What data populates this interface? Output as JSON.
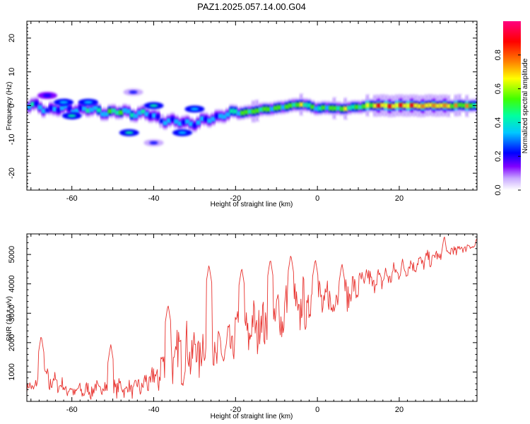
{
  "figure_title": "PAZ1.2025.057.14.00.G04",
  "chart_data": [
    {
      "type": "heatmap",
      "xlabel": "Height of straight line (km)",
      "ylabel": "Frequency (Hz)",
      "xlim": [
        -71,
        39
      ],
      "ylim": [
        -25,
        25
      ],
      "xticks": [
        -60,
        -40,
        -20,
        0,
        20
      ],
      "yticks": [
        -20,
        -10,
        0,
        10,
        20
      ],
      "colorbar": {
        "label": "Normalized spectral amplitude",
        "ticks": [
          0.0,
          0.2,
          0.4,
          0.6,
          0.8
        ],
        "ticklabels": [
          "0.0",
          "0.2",
          "0.4",
          "0.6",
          "0.8"
        ],
        "range": [
          0,
          1
        ],
        "colormap": [
          "#ffffff",
          "#c8a8ff",
          "#8000ff",
          "#0000ff",
          "#00c8ff",
          "#00ffa0",
          "#40ff00",
          "#ffff00",
          "#ff8000",
          "#ff0000",
          "#ff0080"
        ]
      },
      "ridge": {
        "x": [
          -70,
          -66,
          -62,
          -58,
          -54,
          -50,
          -46,
          -42,
          -38,
          -35,
          -32,
          -29,
          -26,
          -23,
          -21,
          -18,
          -15,
          -12,
          -9,
          -6,
          -4,
          -2,
          0,
          3,
          6,
          9,
          12,
          16,
          20,
          25,
          30,
          35,
          39
        ],
        "frequency": [
          0,
          -1,
          -1,
          -1,
          -1.5,
          -2,
          -2,
          -2.5,
          -4,
          -5,
          -5,
          -5,
          -4,
          -2.5,
          -2.5,
          -2,
          -1.5,
          -1,
          -0.5,
          0,
          0.5,
          0,
          -1,
          -0.5,
          -1,
          -0.5,
          0,
          0,
          0,
          0,
          0,
          0,
          0
        ],
        "amplitude": [
          0.5,
          0.35,
          0.45,
          0.45,
          0.5,
          0.6,
          0.55,
          0.45,
          0.4,
          0.45,
          0.45,
          0.45,
          0.4,
          0.45,
          0.55,
          0.6,
          0.7,
          0.65,
          0.6,
          0.65,
          0.7,
          0.6,
          0.55,
          0.65,
          0.7,
          0.6,
          0.75,
          0.9,
          0.9,
          0.85,
          0.85,
          0.8,
          0.7
        ]
      },
      "blobs": [
        {
          "x": -66,
          "frequency": 3,
          "amplitude": 0.15
        },
        {
          "x": -62,
          "frequency": 1,
          "amplitude": 0.25
        },
        {
          "x": -56,
          "frequency": 1,
          "amplitude": 0.25
        },
        {
          "x": -60,
          "frequency": -3,
          "amplitude": 0.3
        },
        {
          "x": -46,
          "frequency": -8,
          "amplitude": 0.3
        },
        {
          "x": -40,
          "frequency": 0,
          "amplitude": 0.3
        },
        {
          "x": -33,
          "frequency": -8,
          "amplitude": 0.25
        },
        {
          "x": -40,
          "frequency": -11,
          "amplitude": 0.12
        },
        {
          "x": -45,
          "frequency": 4,
          "amplitude": 0.12
        },
        {
          "x": -30,
          "frequency": -1,
          "amplitude": 0.25
        }
      ]
    },
    {
      "type": "line",
      "xlabel": "Height of straight line (km)",
      "ylabel": "SNR (10 * v/v)",
      "xlim": [
        -71,
        39
      ],
      "ylim": [
        0,
        5700
      ],
      "xticks": [
        -60,
        -40,
        -20,
        0,
        20
      ],
      "yticks": [
        1000,
        2000,
        3000,
        4000,
        5000
      ],
      "color": "#e8322e",
      "envelope": {
        "x": [
          -71,
          -68,
          -66,
          -64,
          -62,
          -60,
          -56,
          -52,
          -50,
          -48,
          -46,
          -44,
          -42,
          -40,
          -38,
          -36,
          -34,
          -32,
          -30,
          -28,
          -26,
          -24,
          -22,
          -21,
          -20,
          -18,
          -16,
          -14,
          -12,
          -10,
          -8,
          -6,
          -4,
          -2,
          0,
          2,
          4,
          6,
          8,
          10,
          12,
          14,
          16,
          18,
          20,
          22,
          24,
          26,
          28,
          30,
          32,
          34,
          36,
          39
        ],
        "baseline": [
          400,
          500,
          600,
          600,
          400,
          300,
          300,
          400,
          450,
          400,
          350,
          400,
          500,
          600,
          900,
          1100,
          1300,
          1400,
          1500,
          1500,
          1500,
          1400,
          1600,
          1800,
          2000,
          2100,
          2300,
          2400,
          2600,
          2700,
          2800,
          2800,
          2900,
          3000,
          3100,
          3200,
          3300,
          3400,
          3600,
          3800,
          3900,
          4000,
          4100,
          4200,
          4400,
          4500,
          4600,
          4700,
          4800,
          4900,
          5000,
          5100,
          5200,
          5300
        ],
        "spread": [
          300,
          600,
          900,
          500,
          500,
          400,
          500,
          600,
          700,
          500,
          500,
          600,
          700,
          1000,
          1400,
          1700,
          1700,
          1700,
          1500,
          1700,
          1700,
          1500,
          1300,
          1200,
          1400,
          1500,
          1500,
          1700,
          1700,
          1500,
          1700,
          1800,
          1700,
          1600,
          1500,
          1400,
          1200,
          1100,
          1000,
          900,
          800,
          700,
          700,
          600,
          600,
          500,
          500,
          500,
          500,
          400,
          400,
          400,
          300,
          300
        ]
      },
      "peaks": [
        {
          "x": -67.5,
          "y": 2250
        },
        {
          "x": -50.5,
          "y": 1950
        },
        {
          "x": -36.5,
          "y": 3300
        },
        {
          "x": -26.5,
          "y": 4650
        },
        {
          "x": -18.5,
          "y": 4550
        },
        {
          "x": -11.5,
          "y": 4850
        },
        {
          "x": -6.5,
          "y": 5000
        },
        {
          "x": -0.5,
          "y": 4850
        },
        {
          "x": 6.0,
          "y": 4700
        },
        {
          "x": 12.0,
          "y": 4500
        },
        {
          "x": 31.0,
          "y": 5650
        }
      ]
    }
  ]
}
